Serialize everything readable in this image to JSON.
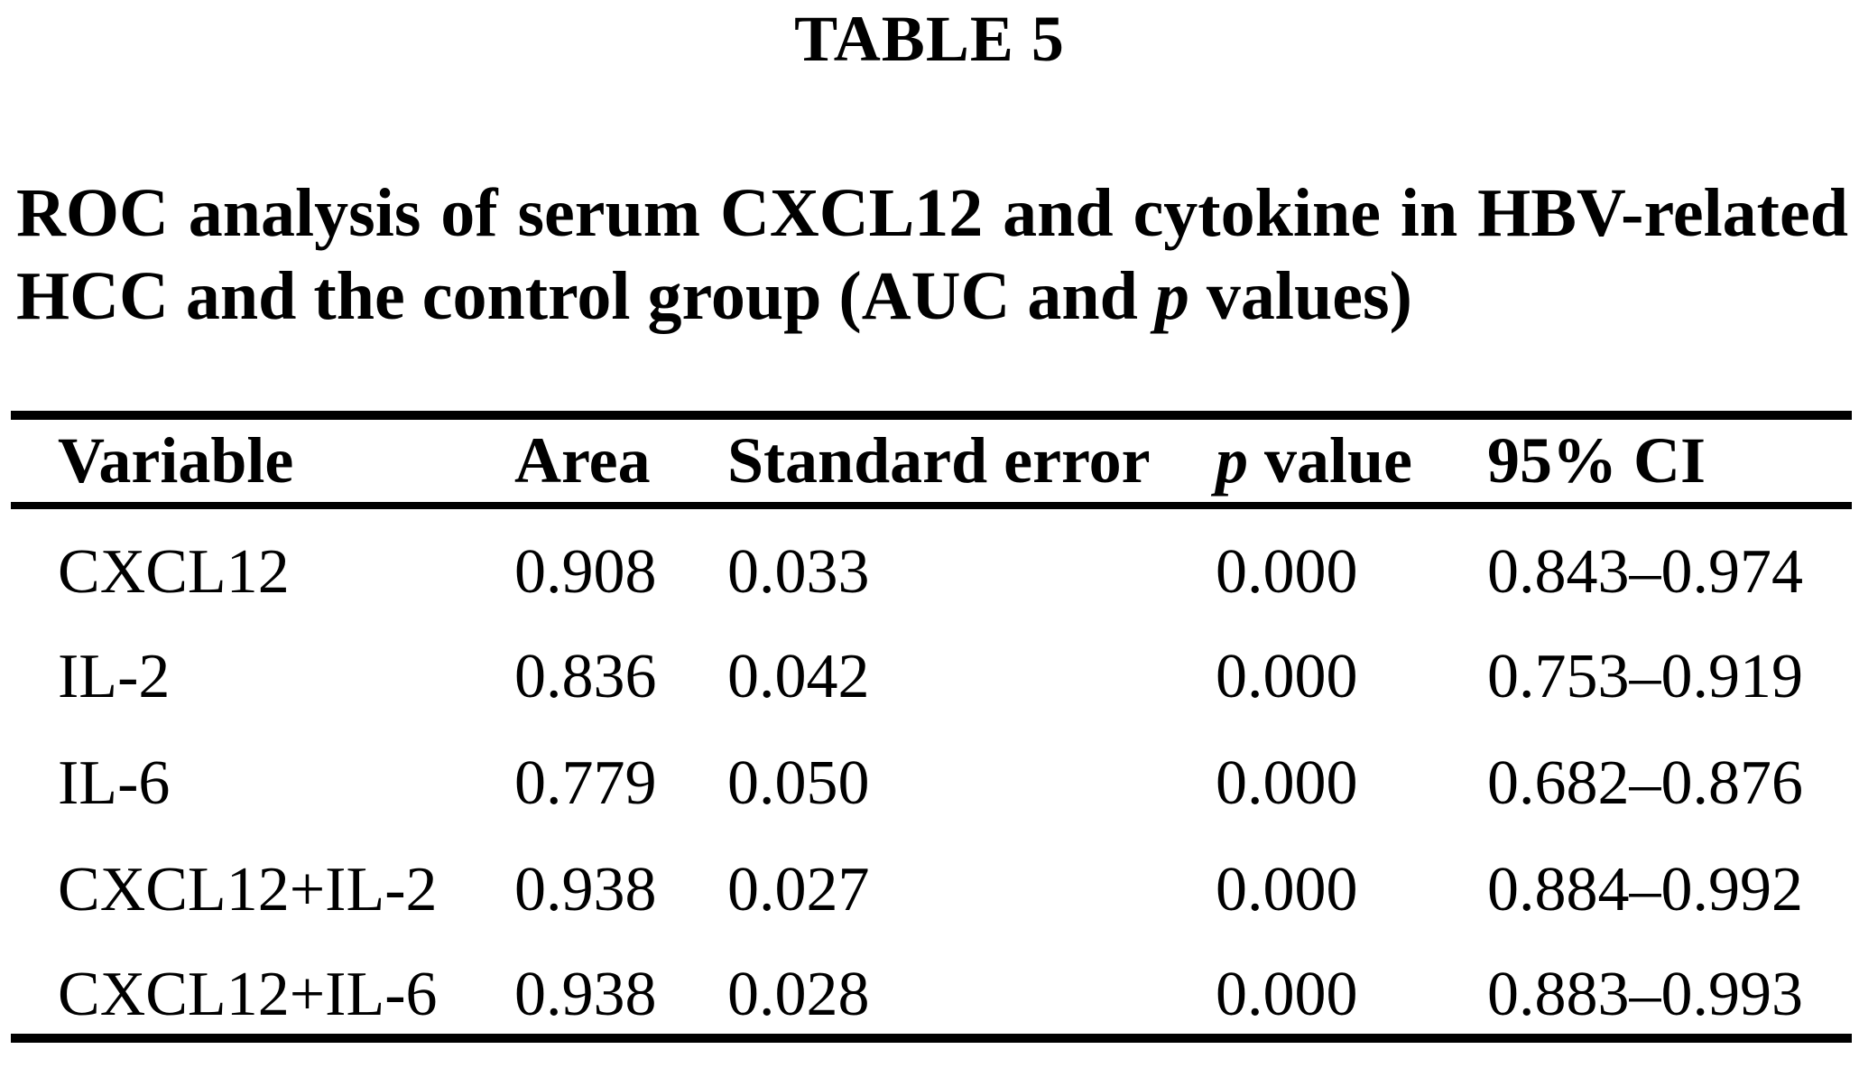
{
  "colors": {
    "text": "#000000",
    "background": "#ffffff",
    "rule": "#000000"
  },
  "page": {
    "table_number": "TABLE 5",
    "caption": {
      "line1": "ROC analysis of serum CXCL12 and cytokine in HBV-related",
      "line2_pre": "HCC and the control group (AUC and ",
      "line2_italic": "p",
      "line2_post": " values)"
    }
  },
  "table": {
    "header": {
      "variable": "Variable",
      "area": "Area",
      "standard_error": "Standard error",
      "p_value_italic": "p",
      "p_value_rest": " value",
      "ci": "95% CI"
    },
    "rows": [
      {
        "variable": "CXCL12",
        "area": "0.908",
        "standard_error": "0.033",
        "p_value": "0.000",
        "ci": "0.843–0.974"
      },
      {
        "variable": "IL-2",
        "area": "0.836",
        "standard_error": "0.042",
        "p_value": "0.000",
        "ci": "0.753–0.919"
      },
      {
        "variable": "IL-6",
        "area": "0.779",
        "standard_error": "0.050",
        "p_value": "0.000",
        "ci": "0.682–0.876"
      },
      {
        "variable": "CXCL12+IL-2",
        "area": "0.938",
        "standard_error": "0.027",
        "p_value": "0.000",
        "ci": "0.884–0.992"
      },
      {
        "variable": "CXCL12+IL-6",
        "area": "0.938",
        "standard_error": "0.028",
        "p_value": "0.000",
        "ci": "0.883–0.993"
      }
    ]
  }
}
